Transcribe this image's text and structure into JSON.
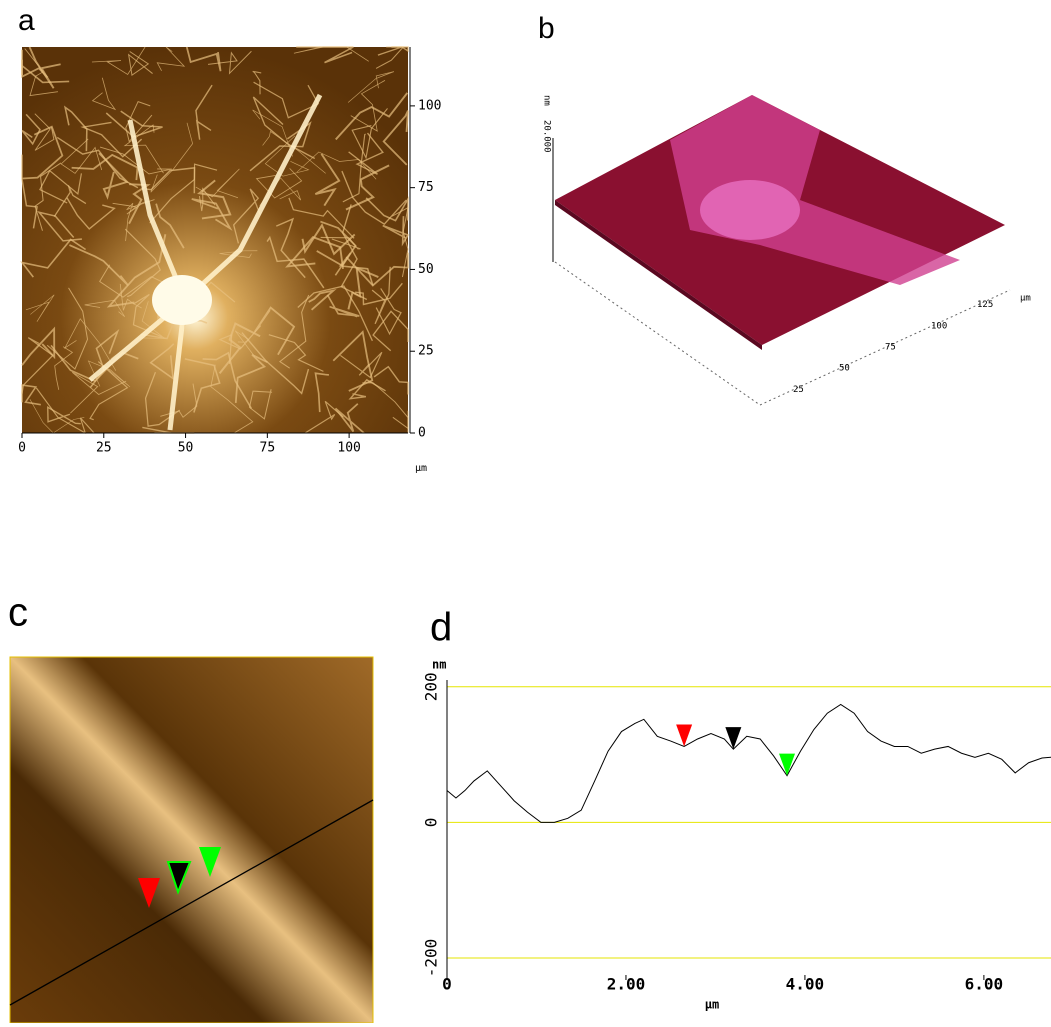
{
  "panel_labels": {
    "a": "a",
    "b": "b",
    "c": "c",
    "d": "d"
  },
  "panel_b": {
    "z_label": "20.000",
    "z_unit": "nm",
    "axis_ticks": [
      "25",
      "50",
      "75",
      "100",
      "125"
    ],
    "axis_unit": "µm"
  },
  "chart_data": [
    {
      "type": "image",
      "xlabel": "µm",
      "xlim": [
        0,
        118
      ],
      "ylim": [
        0,
        118
      ],
      "xticks": [
        0,
        25,
        50,
        75,
        100
      ],
      "yticks": [
        0,
        25,
        50,
        75,
        100
      ]
    },
    {
      "type": "line",
      "ylabel": "nm",
      "xlabel": "µm",
      "xlim": [
        0,
        6.75
      ],
      "ylim": [
        -225,
        210
      ],
      "xticks": [
        0,
        {
          "value": 2,
          "label": "2.00"
        },
        {
          "value": 4,
          "label": "4.00"
        },
        {
          "value": 6,
          "label": "6.00"
        }
      ],
      "yticks": [
        -200,
        0,
        200
      ],
      "grid_color": "#e6e600",
      "series": [
        {
          "color": "#000000",
          "x": [
            0,
            0.1,
            0.2,
            0.3,
            0.45,
            0.6,
            0.75,
            0.9,
            1.05,
            1.2,
            1.35,
            1.5,
            1.65,
            1.8,
            1.95,
            2.1,
            2.2,
            2.35,
            2.5,
            2.65,
            2.8,
            2.95,
            3.1,
            3.2,
            3.35,
            3.5,
            3.65,
            3.8,
            3.95,
            4.1,
            4.25,
            4.4,
            4.55,
            4.7,
            4.85,
            5.0,
            5.15,
            5.3,
            5.45,
            5.6,
            5.75,
            5.9,
            6.05,
            6.2,
            6.35,
            6.5,
            6.65,
            6.75
          ],
          "values": [
            47,
            36,
            47,
            61,
            76,
            54,
            32,
            15,
            0,
            0,
            6,
            18,
            61,
            105,
            134,
            146,
            152,
            127,
            120,
            112,
            123,
            131,
            123,
            108,
            127,
            123,
            98,
            69,
            105,
            137,
            161,
            174,
            161,
            134,
            120,
            112,
            112,
            102,
            108,
            112,
            102,
            96,
            102,
            93,
            73,
            88,
            95,
            96
          ]
        }
      ],
      "cursors": [
        {
          "color": "#ff0000",
          "x": 2.65,
          "y": 112
        },
        {
          "color": "#000000",
          "x": 3.2,
          "y": 108
        },
        {
          "color": "#00ff00",
          "x": 3.8,
          "y": 69
        }
      ]
    }
  ]
}
